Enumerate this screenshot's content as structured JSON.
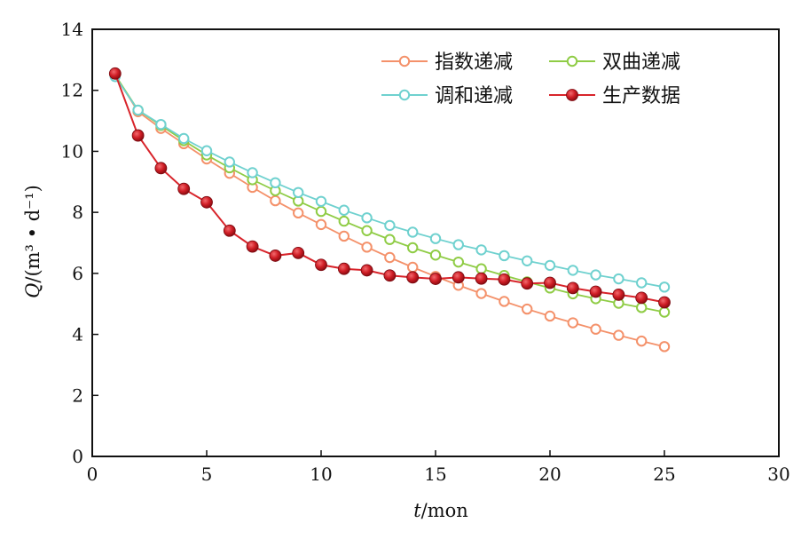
{
  "chart_data": {
    "type": "line",
    "title": "",
    "xlabel_italic": "t",
    "xlabel_rest": "/mon",
    "ylabel_italic": "Q",
    "ylabel_rest": "/(m³ • d⁻¹)",
    "xlim": [
      0,
      30
    ],
    "ylim": [
      0,
      14
    ],
    "xticks": [
      0,
      5,
      10,
      15,
      20,
      25,
      30
    ],
    "yticks": [
      0,
      2,
      4,
      6,
      8,
      10,
      12,
      14
    ],
    "grid": false,
    "legend_position": "top-right",
    "x": [
      1,
      2,
      3,
      4,
      5,
      6,
      7,
      8,
      9,
      10,
      11,
      12,
      13,
      14,
      15,
      16,
      17,
      18,
      19,
      20,
      21,
      22,
      23,
      24,
      25
    ],
    "series": [
      {
        "name": "指数递减",
        "color": "#f4916a",
        "marker": "hollow-circle",
        "values": [
          12.5,
          11.3,
          10.75,
          10.25,
          9.75,
          9.28,
          8.82,
          8.38,
          7.98,
          7.6,
          7.22,
          6.86,
          6.52,
          6.2,
          5.9,
          5.61,
          5.34,
          5.08,
          4.83,
          4.6,
          4.38,
          4.17,
          3.97,
          3.78,
          3.6
        ]
      },
      {
        "name": "双曲递减",
        "color": "#8fcc45",
        "marker": "hollow-circle",
        "values": [
          12.5,
          11.35,
          10.85,
          10.35,
          9.88,
          9.46,
          9.07,
          8.71,
          8.37,
          8.03,
          7.71,
          7.4,
          7.11,
          6.84,
          6.6,
          6.37,
          6.15,
          5.93,
          5.72,
          5.52,
          5.33,
          5.17,
          5.02,
          4.88,
          4.73
        ]
      },
      {
        "name": "调和递减",
        "color": "#6fd1cf",
        "marker": "hollow-circle",
        "values": [
          12.45,
          11.35,
          10.88,
          10.42,
          10.02,
          9.65,
          9.3,
          8.97,
          8.65,
          8.36,
          8.07,
          7.82,
          7.57,
          7.35,
          7.14,
          6.94,
          6.77,
          6.58,
          6.41,
          6.26,
          6.1,
          5.95,
          5.82,
          5.69,
          5.55
        ]
      },
      {
        "name": "生产数据",
        "color": "#d8242b",
        "marker": "filled-circle",
        "values": [
          12.55,
          10.52,
          9.45,
          8.77,
          8.33,
          7.4,
          6.88,
          6.58,
          6.67,
          6.28,
          6.15,
          6.1,
          5.93,
          5.87,
          5.82,
          5.87,
          5.83,
          5.8,
          5.67,
          5.69,
          5.52,
          5.4,
          5.3,
          5.2,
          5.05
        ]
      }
    ]
  }
}
